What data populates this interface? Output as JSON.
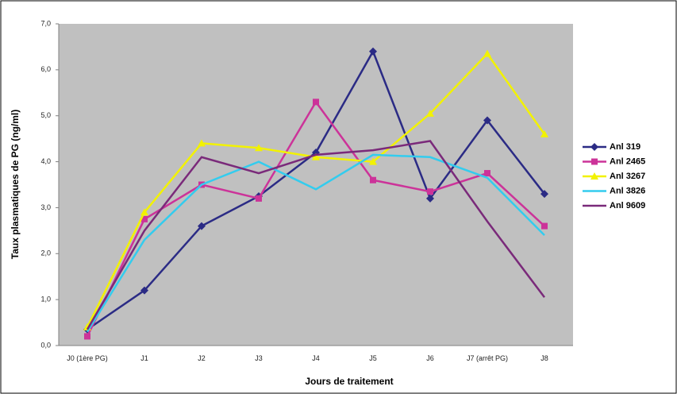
{
  "chart_data": {
    "type": "line",
    "x_label": "Jours de traitement",
    "y_label": "Taux plasmatiques de PG (ng/ml)",
    "categories": [
      "J0 (1ère PG)",
      "J1",
      "J2",
      "J3",
      "J4",
      "J5",
      "J6",
      "J7 (arrêt PG)",
      "J8"
    ],
    "series": [
      {
        "name": "Anl 319",
        "color": "#2b2b85",
        "marker": "diamond",
        "values": [
          0.35,
          1.2,
          2.6,
          3.25,
          4.2,
          6.4,
          3.2,
          4.9,
          3.3
        ]
      },
      {
        "name": "Anl 2465",
        "color": "#cc3399",
        "marker": "square",
        "values": [
          0.2,
          2.75,
          3.5,
          3.2,
          5.3,
          3.6,
          3.35,
          3.75,
          2.6
        ]
      },
      {
        "name": "Anl 3267",
        "color": "#f2f200",
        "marker": "triangle",
        "values": [
          0.4,
          2.9,
          4.4,
          4.3,
          4.1,
          4.0,
          5.05,
          6.35,
          4.6
        ]
      },
      {
        "name": "Anl 3826",
        "color": "#33ccee",
        "marker": "none",
        "values": [
          0.3,
          2.3,
          3.5,
          4.0,
          3.4,
          4.15,
          4.1,
          3.65,
          2.4
        ]
      },
      {
        "name": "Anl 9609",
        "color": "#7a2a7a",
        "marker": "none",
        "values": [
          0.35,
          2.5,
          4.1,
          3.75,
          4.15,
          4.25,
          4.45,
          2.7,
          1.05
        ]
      }
    ],
    "ylim": [
      0,
      7
    ],
    "yticks": [
      {
        "value": 0,
        "label": "0,0"
      },
      {
        "value": 1,
        "label": "1,0"
      },
      {
        "value": 2,
        "label": "2,0"
      },
      {
        "value": 3,
        "label": "3,0"
      },
      {
        "value": 4,
        "label": "4,0"
      },
      {
        "value": 5,
        "label": "5,0"
      },
      {
        "value": 6,
        "label": "6,0"
      },
      {
        "value": 7,
        "label": "7,0"
      }
    ],
    "grid": false,
    "legend": "right"
  }
}
